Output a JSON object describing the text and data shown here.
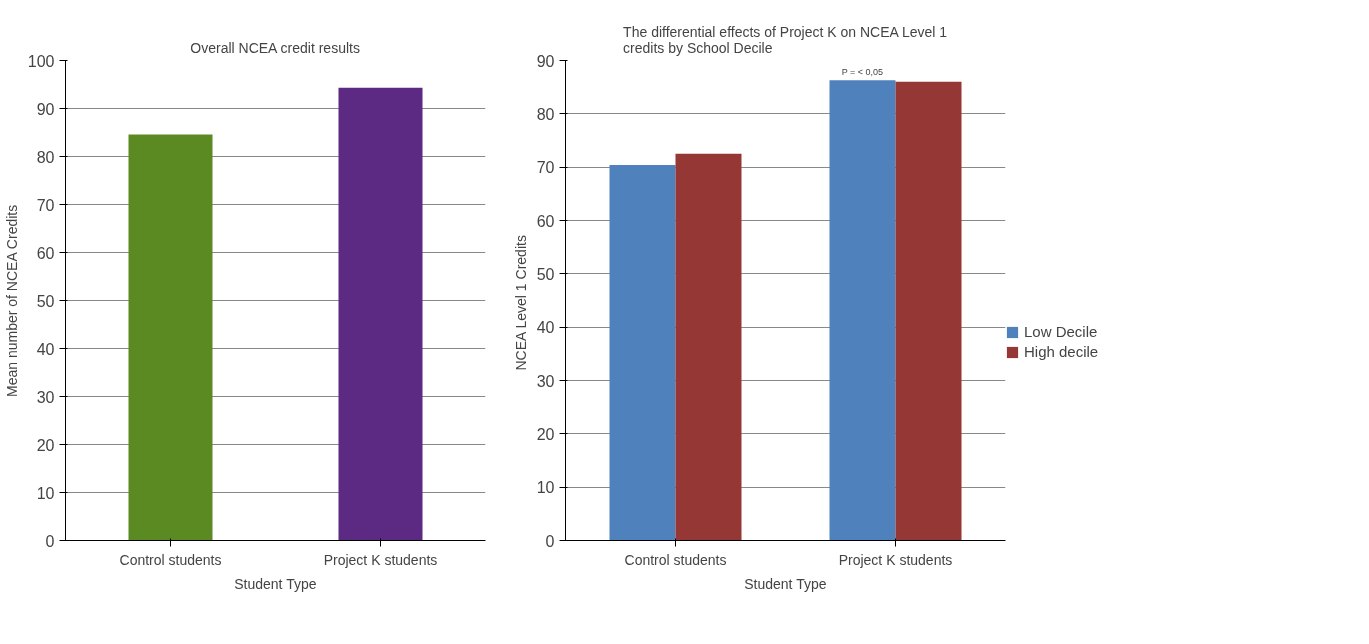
{
  "chart_data": [
    {
      "type": "bar",
      "title": "Overall NCEA credit results",
      "xlabel": "Student Type",
      "ylabel": "Mean number of NCEA Credits",
      "categories": [
        "Control students",
        "Project K students"
      ],
      "values": [
        84.6,
        94.3
      ],
      "colors": [
        "#5b8a22",
        "#5c2a82"
      ],
      "ylim": [
        0,
        100
      ],
      "yticks": [
        0,
        10,
        20,
        30,
        40,
        50,
        60,
        70,
        80,
        90,
        100
      ],
      "grid": "y",
      "legend": false
    },
    {
      "type": "bar",
      "title": "The differential effects of Project K on NCEA Level 1\ncredits by School Decile",
      "xlabel": "Student Type",
      "ylabel": "NCEA Level 1  Credits",
      "categories": [
        "Control students",
        "Project K students"
      ],
      "series": [
        {
          "name": "Low Decile",
          "color": "#4f81bd",
          "values": [
            70.4,
            86.3
          ]
        },
        {
          "name": "High decile",
          "color": "#953735",
          "values": [
            72.5,
            86.0
          ]
        }
      ],
      "ylim": [
        0,
        90
      ],
      "yticks": [
        0,
        10,
        20,
        30,
        40,
        50,
        60,
        70,
        80,
        90
      ],
      "grid": "y",
      "legend": "right",
      "annotations": [
        {
          "text": "P = < 0,05",
          "x": "Project K students",
          "y": 86.3
        }
      ]
    }
  ]
}
